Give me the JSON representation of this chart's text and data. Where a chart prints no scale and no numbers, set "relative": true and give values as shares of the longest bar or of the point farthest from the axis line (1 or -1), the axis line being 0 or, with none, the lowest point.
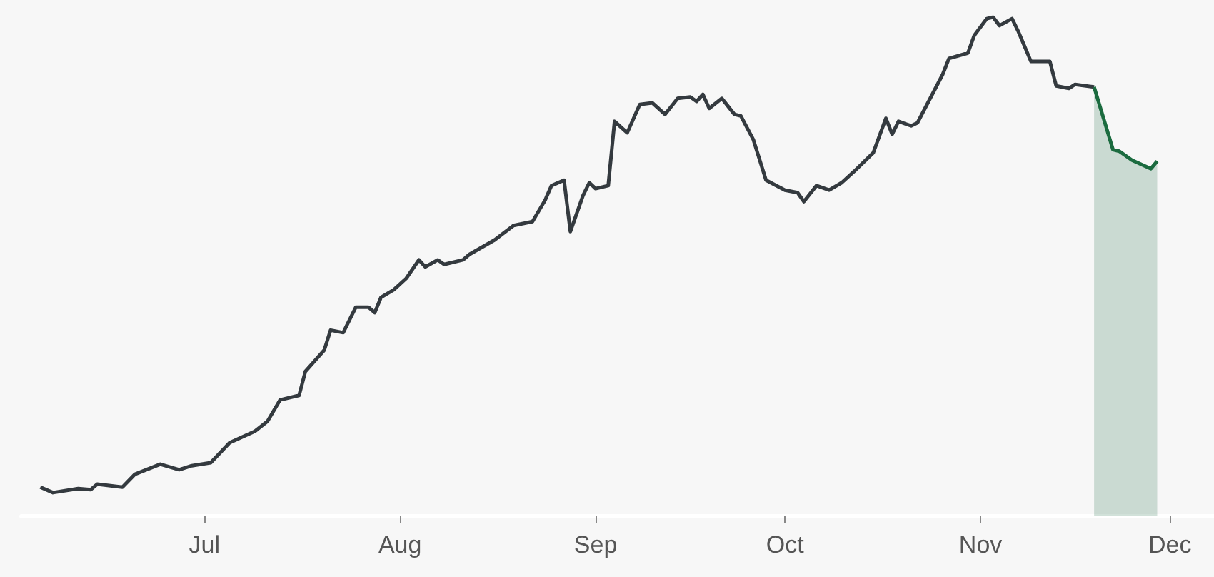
{
  "chart_data": {
    "type": "line",
    "relative": true,
    "xlim": [
      "--06-02",
      "--12-08"
    ],
    "xticks": [
      {
        "value": "--07-01",
        "label": "Jul"
      },
      {
        "value": "--08-01",
        "label": "Aug"
      },
      {
        "value": "--09-01",
        "label": "Sep"
      },
      {
        "value": "--10-01",
        "label": "Oct"
      },
      {
        "value": "--11-01",
        "label": "Nov"
      },
      {
        "value": "--12-01",
        "label": "Dec"
      }
    ],
    "series": [
      {
        "color": "#343a3f",
        "x": [
          "--06-05",
          "--06-07",
          "--06-11",
          "--06-13",
          "--06-14",
          "--06-18",
          "--06-20",
          "--06-24",
          "--06-27",
          "--06-29",
          "--07-02",
          "--07-05",
          "--07-09",
          "--07-11",
          "--07-13",
          "--07-16",
          "--07-17",
          "--07-20",
          "--07-21",
          "--07-23",
          "--07-25",
          "--07-27",
          "--07-28",
          "--07-29",
          "--07-31",
          "--08-02",
          "--08-04",
          "--08-05",
          "--08-07",
          "--08-08",
          "--08-11",
          "--08-12",
          "--08-16",
          "--08-19",
          "--08-22",
          "--08-24",
          "--08-25",
          "--08-27",
          "--08-28",
          "--08-30",
          "--08-31",
          "--09-01",
          "--09-03",
          "--09-04",
          "--09-06",
          "--09-08",
          "--09-10",
          "--09-12",
          "--09-14",
          "--09-16",
          "--09-17",
          "--09-18",
          "--09-19",
          "--09-21",
          "--09-23",
          "--09-24",
          "--09-26",
          "--09-28",
          "--10-01",
          "--10-03",
          "--10-04",
          "--10-06",
          "--10-08",
          "--10-10",
          "--10-12",
          "--10-15",
          "--10-17",
          "--10-18",
          "--10-19",
          "--10-21",
          "--10-22",
          "--10-26",
          "--10-27",
          "--10-30",
          "--10-31",
          "--11-02",
          "--11-03",
          "--11-04",
          "--11-06",
          "--11-07",
          "--11-09",
          "--11-12",
          "--11-13",
          "--11-15",
          "--11-16",
          "--11-19"
        ],
        "values": [
          0.057,
          0.046,
          0.054,
          0.052,
          0.063,
          0.057,
          0.083,
          0.103,
          0.092,
          0.1,
          0.106,
          0.146,
          0.169,
          0.189,
          0.232,
          0.241,
          0.289,
          0.332,
          0.372,
          0.367,
          0.418,
          0.418,
          0.407,
          0.438,
          0.453,
          0.476,
          0.513,
          0.499,
          0.513,
          0.504,
          0.513,
          0.524,
          0.553,
          0.582,
          0.59,
          0.633,
          0.662,
          0.673,
          0.57,
          0.642,
          0.668,
          0.656,
          0.662,
          0.791,
          0.768,
          0.825,
          0.828,
          0.805,
          0.837,
          0.84,
          0.831,
          0.845,
          0.817,
          0.837,
          0.805,
          0.802,
          0.754,
          0.673,
          0.653,
          0.648,
          0.63,
          0.662,
          0.653,
          0.668,
          0.691,
          0.728,
          0.797,
          0.765,
          0.791,
          0.782,
          0.788,
          0.885,
          0.917,
          0.928,
          0.963,
          0.997,
          1,
          0.983,
          0.997,
          0.971,
          0.911,
          0.911,
          0.862,
          0.857,
          0.865,
          0.86
        ]
      },
      {
        "type": "area",
        "color": "#1b6b3f",
        "x": [
          "--11-19",
          "--11-22",
          "--11-23",
          "--11-25",
          "--11-28",
          "--11-29"
        ],
        "values": [
          0.86,
          0.734,
          0.731,
          0.713,
          0.696,
          0.711
        ]
      }
    ]
  }
}
